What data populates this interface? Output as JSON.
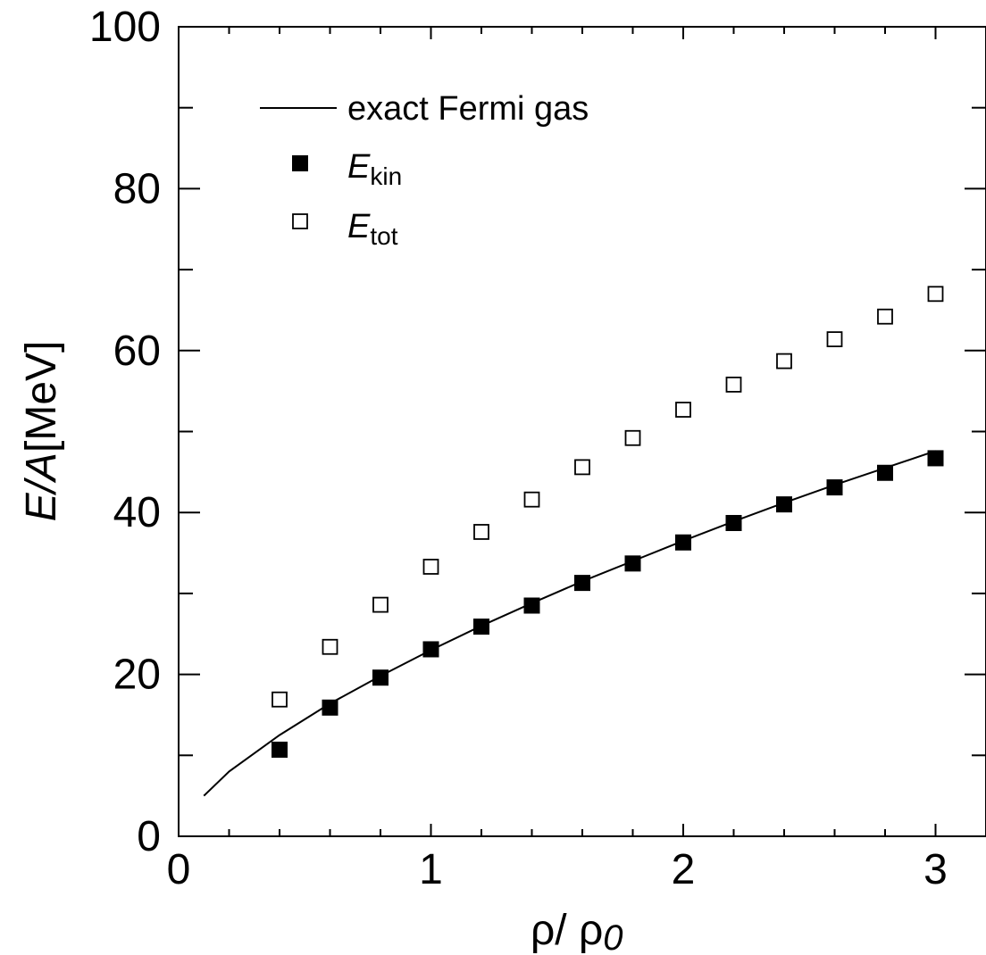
{
  "chart_data": {
    "type": "scatter",
    "xlabel": {
      "main": "ρ/ ρ",
      "sub": "0"
    },
    "ylabel": {
      "italic": "E/A",
      "rest": "[MeV]"
    },
    "xlim": [
      0,
      3.2
    ],
    "ylim": [
      0,
      100
    ],
    "x_tick_labels": [
      "0",
      "1",
      "2",
      "3"
    ],
    "x_tick_values": [
      0,
      1,
      2,
      3
    ],
    "y_tick_labels": [
      "0",
      "20",
      "40",
      "60",
      "80",
      "100"
    ],
    "y_tick_values": [
      0,
      20,
      40,
      60,
      80,
      100
    ],
    "grid": false,
    "legend_placement": "top-left",
    "series": [
      {
        "name": "exact Fermi gas",
        "style": "line",
        "color": "#000000",
        "x": [
          0.1,
          0.2,
          0.4,
          0.6,
          0.8,
          1.0,
          1.2,
          1.4,
          1.6,
          1.8,
          2.0,
          2.2,
          2.4,
          2.6,
          2.8,
          3.0
        ],
        "y": [
          5.0,
          8.0,
          12.5,
          16.4,
          19.8,
          23.0,
          26.0,
          28.8,
          31.5,
          34.0,
          36.5,
          38.9,
          41.2,
          43.4,
          45.5,
          47.6
        ]
      },
      {
        "name": "E_kin",
        "legend_main": "E",
        "legend_sub": "kin",
        "style": "filled-square",
        "color": "#000000",
        "x": [
          0.4,
          0.6,
          0.8,
          1.0,
          1.2,
          1.4,
          1.6,
          1.8,
          2.0,
          2.2,
          2.4,
          2.6,
          2.8,
          3.0
        ],
        "y": [
          10.7,
          15.9,
          19.6,
          23.1,
          25.9,
          28.5,
          31.3,
          33.7,
          36.3,
          38.7,
          41.0,
          43.1,
          44.9,
          46.7
        ]
      },
      {
        "name": "E_tot",
        "legend_main": "E",
        "legend_sub": "tot",
        "style": "open-square",
        "color": "#000000",
        "x": [
          0.4,
          0.6,
          0.8,
          1.0,
          1.2,
          1.4,
          1.6,
          1.8,
          2.0,
          2.2,
          2.4,
          2.6,
          2.8,
          3.0
        ],
        "y": [
          16.9,
          23.4,
          28.6,
          33.3,
          37.6,
          41.6,
          45.6,
          49.2,
          52.7,
          55.8,
          58.7,
          61.4,
          64.2,
          67.0
        ]
      }
    ]
  }
}
